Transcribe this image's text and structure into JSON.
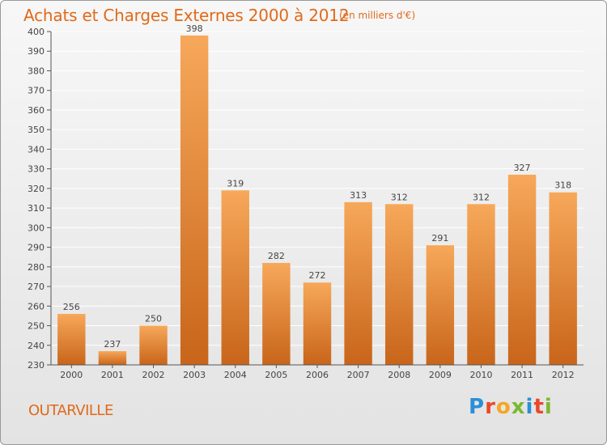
{
  "header": {
    "title": "Achats et Charges Externes 2000 à 2012",
    "subtitle": "(en milliers d'€)"
  },
  "footer": {
    "town": "OUTARVILLE",
    "logo_letters": [
      "P",
      "r",
      "o",
      "x",
      "i",
      "t",
      "i"
    ],
    "logo_colors": [
      "#2a8fd6",
      "#e8482c",
      "#f5a623",
      "#7cb82f",
      "#2a8fd6",
      "#e8482c",
      "#7cb82f"
    ]
  },
  "colors": {
    "bar_light": "#f7a85a",
    "bar_dark": "#c8651a",
    "grid": "#ffffff",
    "axis": "#555555"
  },
  "chart_data": {
    "type": "bar",
    "title": "Achats et Charges Externes 2000 à 2012",
    "subtitle": "(en milliers d'€)",
    "categories": [
      "2000",
      "2001",
      "2002",
      "2003",
      "2004",
      "2005",
      "2006",
      "2007",
      "2008",
      "2009",
      "2010",
      "2011",
      "2012"
    ],
    "values": [
      256,
      237,
      250,
      398,
      319,
      282,
      272,
      313,
      312,
      291,
      312,
      327,
      318
    ],
    "ylim": [
      230,
      400
    ],
    "ytick_step": 10,
    "grid": true,
    "data_labels": true
  }
}
